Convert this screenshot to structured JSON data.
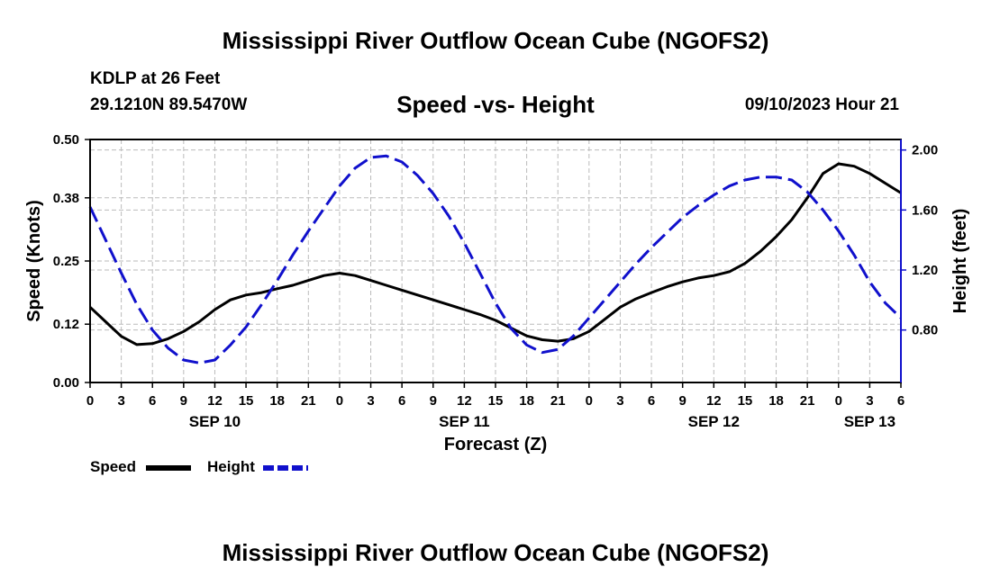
{
  "header": {
    "title": "Mississippi River Outflow Ocean Cube (NGOFS2)",
    "station": "KDLP at 26 Feet",
    "coords": "29.1210N  89.5470W",
    "subtitle": "Speed -vs- Height",
    "datetime": "09/10/2023 Hour 21"
  },
  "footer": {
    "title": "Mississippi River Outflow Ocean Cube (NGOFS2)"
  },
  "legend": {
    "speed": "Speed",
    "height": "Height"
  },
  "colors": {
    "speed": "#000000",
    "height": "#1010cc",
    "grid": "#bbbbbb"
  },
  "chart_data": {
    "type": "line",
    "xlabel": "Forecast (Z)",
    "ylabel_left": "Speed (Knots)",
    "ylabel_right": "Height (feet)",
    "x_unit": "hours from 0Z SEP 10",
    "xlim": [
      0,
      78
    ],
    "ylim_left": [
      0,
      0.5
    ],
    "ylim_right": [
      0.45,
      2.07
    ],
    "yticks_left": [
      0.0,
      0.12,
      0.25,
      0.38,
      0.5
    ],
    "yticks_left_labels": [
      "0.00",
      "0.12",
      "0.25",
      "0.38",
      "0.50"
    ],
    "yticks_right": [
      0.8,
      1.2,
      1.6,
      2.0
    ],
    "yticks_right_labels": [
      "0.80",
      "1.20",
      "1.60",
      "2.00"
    ],
    "xticks_labels": [
      "0",
      "3",
      "6",
      "9",
      "12",
      "15",
      "18",
      "21",
      "0",
      "3",
      "6",
      "9",
      "12",
      "15",
      "18",
      "21",
      "0",
      "3",
      "6",
      "9",
      "12",
      "15",
      "18",
      "21",
      "0",
      "3",
      "6"
    ],
    "date_labels": [
      {
        "hour": 12,
        "text": "SEP 10"
      },
      {
        "hour": 36,
        "text": "SEP 11"
      },
      {
        "hour": 60,
        "text": "SEP 12"
      },
      {
        "hour": 75,
        "text": "SEP 13"
      }
    ],
    "series": [
      {
        "name": "Speed",
        "axis": "left",
        "style": "solid",
        "x": [
          0,
          1.5,
          3,
          4.5,
          6,
          7.5,
          9,
          10.5,
          12,
          13.5,
          15,
          16.5,
          18,
          19.5,
          21,
          22.5,
          24,
          25.5,
          27,
          28.5,
          30,
          31.5,
          33,
          34.5,
          36,
          37.5,
          39,
          40.5,
          42,
          43.5,
          45,
          46.5,
          48,
          49.5,
          51,
          52.5,
          54,
          55.5,
          57,
          58.5,
          60,
          61.5,
          63,
          64.5,
          66,
          67.5,
          69,
          70.5,
          72,
          73.5,
          75,
          76.5,
          78
        ],
        "values": [
          0.155,
          0.125,
          0.095,
          0.078,
          0.08,
          0.09,
          0.105,
          0.125,
          0.15,
          0.17,
          0.18,
          0.185,
          0.193,
          0.2,
          0.21,
          0.22,
          0.225,
          0.22,
          0.21,
          0.2,
          0.19,
          0.18,
          0.17,
          0.16,
          0.15,
          0.14,
          0.128,
          0.112,
          0.096,
          0.088,
          0.085,
          0.09,
          0.105,
          0.13,
          0.155,
          0.172,
          0.185,
          0.197,
          0.207,
          0.215,
          0.22,
          0.228,
          0.245,
          0.27,
          0.3,
          0.335,
          0.38,
          0.43,
          0.45,
          0.445,
          0.43,
          0.41,
          0.39
        ]
      },
      {
        "name": "Height",
        "axis": "right",
        "style": "dashed",
        "x": [
          0,
          1.5,
          3,
          4.5,
          6,
          7.5,
          9,
          10.5,
          12,
          13.5,
          15,
          16.5,
          18,
          19.5,
          21,
          22.5,
          24,
          25.5,
          27,
          28.5,
          30,
          31.5,
          33,
          34.5,
          36,
          37.5,
          39,
          40.5,
          42,
          43.5,
          45,
          46.5,
          48,
          49.5,
          51,
          52.5,
          54,
          55.5,
          57,
          58.5,
          60,
          61.5,
          63,
          64.5,
          66,
          67.5,
          69,
          70.5,
          72,
          73.5,
          75,
          76.5,
          78
        ],
        "values": [
          1.62,
          1.4,
          1.18,
          0.97,
          0.8,
          0.68,
          0.6,
          0.58,
          0.6,
          0.7,
          0.82,
          0.97,
          1.13,
          1.3,
          1.46,
          1.61,
          1.76,
          1.88,
          1.95,
          1.96,
          1.92,
          1.83,
          1.71,
          1.56,
          1.38,
          1.18,
          0.98,
          0.81,
          0.7,
          0.65,
          0.67,
          0.76,
          0.88,
          1.0,
          1.12,
          1.24,
          1.35,
          1.45,
          1.55,
          1.63,
          1.7,
          1.76,
          1.8,
          1.82,
          1.82,
          1.8,
          1.72,
          1.6,
          1.46,
          1.3,
          1.12,
          0.98,
          0.88
        ]
      }
    ]
  }
}
